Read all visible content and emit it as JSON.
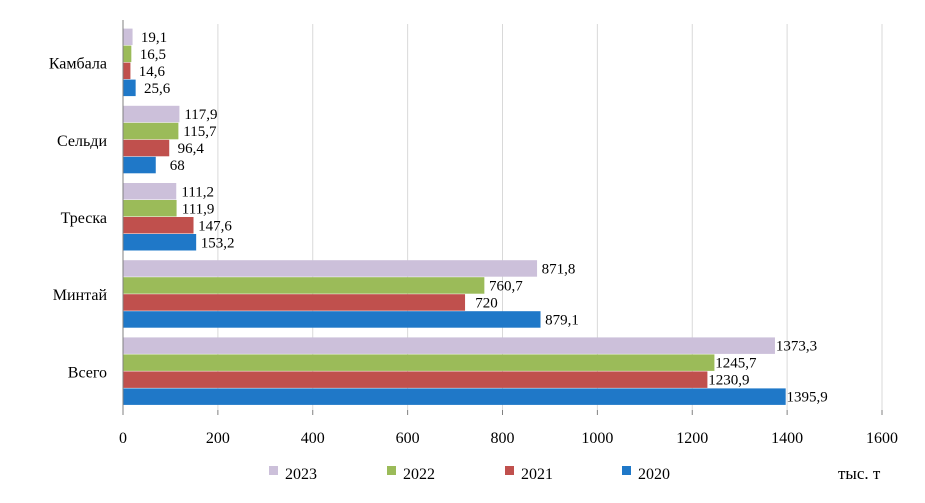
{
  "chart_data": {
    "type": "bar",
    "orientation": "horizontal",
    "categories": [
      "Камбала",
      "Сельди",
      "Треска",
      "Минтай",
      "Всего"
    ],
    "series": [
      {
        "name": "2023",
        "color": "#CCC0DA",
        "values": [
          19.1,
          117.9,
          111.2,
          871.8,
          1373.3
        ],
        "labels": [
          "19,1",
          "117,9",
          "111,2",
          "871,8",
          "1373,3"
        ]
      },
      {
        "name": "2022",
        "color": "#9BBB59",
        "values": [
          16.5,
          115.7,
          111.9,
          760.7,
          1245.7
        ],
        "labels": [
          "16,5",
          "115,7",
          "111,9",
          "760,7",
          "1245,7"
        ]
      },
      {
        "name": "2021",
        "color": "#C0504D",
        "values": [
          14.6,
          96.4,
          147.6,
          720,
          1230.9
        ],
        "labels": [
          "14,6",
          "96,4",
          "147,6",
          "720",
          "1230,9"
        ]
      },
      {
        "name": "2020",
        "color": "#1F78C8",
        "values": [
          25.6,
          68,
          153.2,
          879.1,
          1395.9
        ],
        "labels": [
          "25,6",
          "68",
          "153,2",
          "879,1",
          "1395,9"
        ]
      }
    ],
    "x_ticks": [
      "0",
      "200",
      "400",
      "600",
      "800",
      "1000",
      "1200",
      "1400",
      "1600"
    ],
    "xlim": [
      0,
      1600
    ],
    "grid": true,
    "legend_position": "bottom",
    "unit_label": "тыс. т"
  }
}
